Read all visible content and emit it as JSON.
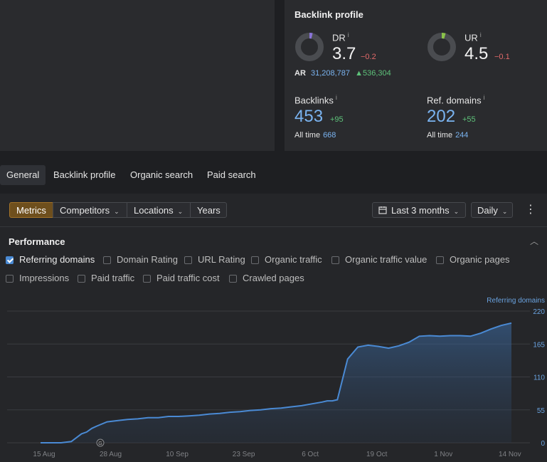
{
  "colors": {
    "accent": "#a47428",
    "positive": "#5ec27a",
    "negative": "#e36a6a",
    "link_blue": "#7ab3f0",
    "series": "#4a8ad4"
  },
  "backlink_profile": {
    "title": "Backlink profile",
    "dr": {
      "label": "DR",
      "info": "i",
      "value": "3.7",
      "delta": "−0.2",
      "gauge_fraction": 0.037
    },
    "ur": {
      "label": "UR",
      "info": "i",
      "value": "4.5",
      "delta": "−0.1",
      "gauge_fraction": 0.045
    },
    "ar": {
      "label": "AR",
      "value": "31,208,787",
      "delta": "▲536,304"
    },
    "backlinks": {
      "label": "Backlinks",
      "info": "i",
      "value": "453",
      "delta": "+95",
      "all_time_label": "All time",
      "all_time_value": "668"
    },
    "ref_domains": {
      "label": "Ref. domains",
      "info": "i",
      "value": "202",
      "delta": "+55",
      "all_time_label": "All time",
      "all_time_value": "244"
    }
  },
  "tabs": [
    "General",
    "Backlink profile",
    "Organic search",
    "Paid search"
  ],
  "toolbar": {
    "segments": [
      "Metrics",
      "Competitors",
      "Locations",
      "Years"
    ],
    "date_range": "Last 3 months",
    "granularity": "Daily",
    "calendar_icon": "calendar-icon",
    "more_icon": "kebab-icon"
  },
  "performance": {
    "title": "Performance",
    "checkboxes": [
      {
        "label": "Referring domains",
        "checked": true
      },
      {
        "label": "Domain Rating",
        "checked": false
      },
      {
        "label": "URL Rating",
        "checked": false
      },
      {
        "label": "Organic traffic",
        "checked": false
      },
      {
        "label": "Organic traffic value",
        "checked": false
      },
      {
        "label": "Organic pages",
        "checked": false
      },
      {
        "label": "Impressions",
        "checked": false
      },
      {
        "label": "Paid traffic",
        "checked": false
      },
      {
        "label": "Paid traffic cost",
        "checked": false
      },
      {
        "label": "Crawled pages",
        "checked": false
      }
    ]
  },
  "chart_data": {
    "type": "area",
    "series": [
      {
        "name": "Referring domains",
        "color": "#4a8ad4",
        "x_index": [
          0,
          2,
          4,
          6,
          8,
          9,
          10,
          11,
          13,
          15,
          17,
          19,
          21,
          23,
          25,
          27,
          29,
          31,
          33,
          35,
          37,
          39,
          41,
          43,
          45,
          47,
          49,
          51,
          53,
          55,
          56,
          57,
          58,
          60,
          62,
          64,
          66,
          68,
          70,
          72,
          74,
          76,
          78,
          80,
          82,
          84,
          86,
          88,
          90,
          92
        ],
        "values": [
          0,
          0,
          0,
          2,
          15,
          18,
          24,
          28,
          35,
          37,
          39,
          40,
          42,
          42,
          44,
          44,
          45,
          46,
          48,
          49,
          51,
          52,
          54,
          55,
          57,
          58,
          60,
          62,
          65,
          68,
          70,
          70,
          72,
          140,
          160,
          163,
          161,
          158,
          162,
          168,
          178,
          179,
          178,
          179,
          179,
          178,
          183,
          190,
          196,
          200
        ]
      }
    ],
    "x_tick_labels": [
      "15 Aug",
      "28 Aug",
      "10 Sep",
      "23 Sep",
      "6 Oct",
      "19 Oct",
      "1 Nov",
      "14 Nov"
    ],
    "x_tick_index": [
      0,
      13,
      26,
      39,
      52,
      65,
      78,
      91
    ],
    "y_ticks": [
      "0",
      "55",
      "110",
      "165",
      "220"
    ],
    "y_tick_values": [
      0,
      55,
      110,
      165,
      220
    ],
    "ylim": [
      0,
      220
    ],
    "legend": "Referring domains",
    "annotation_icon": "google-update-marker-icon",
    "grid": true
  }
}
